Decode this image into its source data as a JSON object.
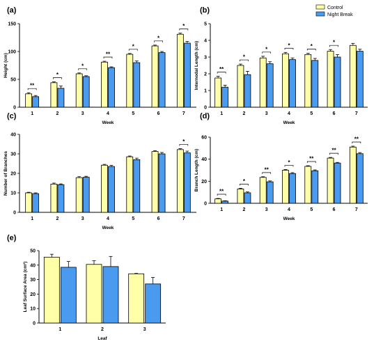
{
  "colors": {
    "control": "#FFFFA8",
    "night_break": "#4A9AF0",
    "stroke": "#000000"
  },
  "legend": [
    {
      "name": "Control",
      "color": "#FFFFA8"
    },
    {
      "name": "Night Break",
      "color": "#4A9AF0"
    }
  ],
  "chart_data": [
    {
      "panel": "(a)",
      "type": "bar",
      "xlabel": "Week",
      "ylabel": "Height (cm)",
      "categories": [
        "1",
        "2",
        "3",
        "4",
        "5",
        "6",
        "7"
      ],
      "ylim": [
        0,
        150
      ],
      "yticks": [
        0,
        50,
        100,
        150
      ],
      "grid": false,
      "series": [
        {
          "name": "Control",
          "values": [
            24,
            44,
            60,
            81,
            95,
            110,
            131
          ],
          "errors": [
            2,
            1.5,
            1.5,
            1.5,
            1.5,
            1.5,
            2
          ]
        },
        {
          "name": "Night Break",
          "values": [
            19,
            34,
            55,
            71,
            80,
            98,
            115
          ],
          "errors": [
            2,
            4,
            1.5,
            1.5,
            3,
            2,
            3
          ]
        }
      ],
      "significance": [
        "**",
        "*",
        "*",
        "**",
        "*",
        "*",
        "*"
      ]
    },
    {
      "panel": "(b)",
      "type": "bar",
      "xlabel": "Week",
      "ylabel": "Internodal Length (cm)",
      "categories": [
        "1",
        "2",
        "3",
        "4",
        "5",
        "6",
        "7"
      ],
      "ylim": [
        0,
        5
      ],
      "yticks": [
        0,
        1,
        2,
        3,
        4,
        5
      ],
      "grid": false,
      "series": [
        {
          "name": "Control",
          "values": [
            1.75,
            2.5,
            2.95,
            3.2,
            3.15,
            3.35,
            3.7
          ],
          "errors": [
            0.1,
            0.08,
            0.1,
            0.08,
            0.08,
            0.1,
            0.12
          ]
        },
        {
          "name": "Night Break",
          "values": [
            1.2,
            1.95,
            2.6,
            2.85,
            2.8,
            3.0,
            3.35
          ],
          "errors": [
            0.12,
            0.2,
            0.12,
            0.1,
            0.12,
            0.15,
            0.12
          ]
        }
      ],
      "significance": [
        "**",
        "*",
        "*",
        "*",
        "*",
        "*",
        ""
      ]
    },
    {
      "panel": "(c)",
      "type": "bar",
      "xlabel": "Week",
      "ylabel": "Number of Branches",
      "categories": [
        "1",
        "2",
        "3",
        "4",
        "5",
        "6",
        "7"
      ],
      "ylim": [
        0,
        40
      ],
      "yticks": [
        0,
        10,
        20,
        30,
        40
      ],
      "grid": false,
      "series": [
        {
          "name": "Control",
          "values": [
            10,
            14.5,
            17.8,
            24.2,
            28.5,
            31.2,
            32.2
          ],
          "errors": [
            0.3,
            0.5,
            0.5,
            0.4,
            0.4,
            0.4,
            0.5
          ]
        },
        {
          "name": "Night Break",
          "values": [
            9.6,
            14.2,
            18.0,
            23.5,
            27.0,
            30.0,
            30.5
          ],
          "errors": [
            0.4,
            0.4,
            0.5,
            0.6,
            0.8,
            0.7,
            0.9
          ]
        }
      ],
      "significance": [
        "",
        "",
        "",
        "",
        "",
        "",
        "*"
      ]
    },
    {
      "panel": "(d)",
      "type": "bar",
      "xlabel": "Week",
      "ylabel": "Branch Length (cm)",
      "categories": [
        "1",
        "2",
        "3",
        "4",
        "5",
        "6",
        "7"
      ],
      "ylim": [
        0,
        60
      ],
      "yticks": [
        0,
        20,
        40,
        60
      ],
      "grid": false,
      "series": [
        {
          "name": "Control",
          "values": [
            4,
            13,
            23.5,
            30,
            33.5,
            41,
            51
          ],
          "errors": [
            0.4,
            0.6,
            0.6,
            0.6,
            0.6,
            0.6,
            0.8
          ]
        },
        {
          "name": "Night Break",
          "values": [
            2,
            9.5,
            19.5,
            27,
            29.5,
            36.5,
            45
          ],
          "errors": [
            0.3,
            0.8,
            0.8,
            0.8,
            0.8,
            0.6,
            1.0
          ]
        }
      ],
      "significance": [
        "**",
        "*",
        "**",
        "*",
        "**",
        "**",
        "**"
      ]
    },
    {
      "panel": "(e)",
      "type": "bar",
      "xlabel": "Leaf",
      "ylabel": "Leaf Surface Area (cm²)",
      "categories": [
        "1",
        "2",
        "3"
      ],
      "ylim": [
        0,
        50
      ],
      "yticks": [
        0,
        10,
        20,
        30,
        40,
        50
      ],
      "grid": false,
      "series": [
        {
          "name": "Control",
          "values": [
            45.5,
            40.5,
            34
          ],
          "errors": [
            2,
            2.5,
            0.3
          ]
        },
        {
          "name": "Night Break",
          "values": [
            38.5,
            39,
            27
          ],
          "errors": [
            4,
            7,
            4.5
          ]
        }
      ],
      "significance": [
        "",
        "",
        ""
      ]
    }
  ]
}
